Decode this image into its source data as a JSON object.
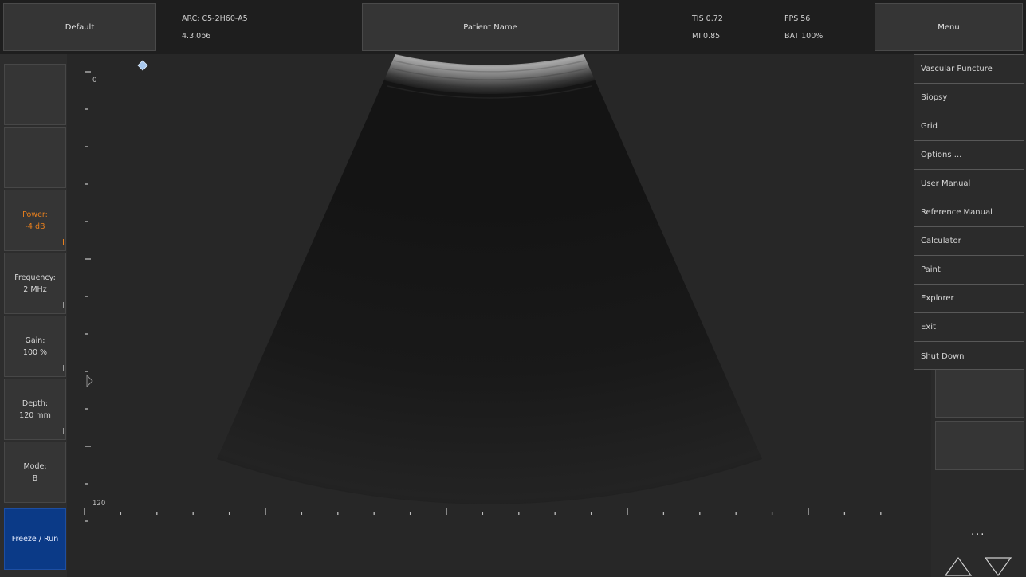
{
  "topbar": {
    "preset_label": "Default",
    "probe": "ARC: C5-2H60-A5",
    "version": "4.3.0b6",
    "patient_label": "Patient Name",
    "tis": "TIS 0.72",
    "mi": "MI 0.85",
    "fps": "FPS 56",
    "battery": "BAT 100%",
    "menu_label": "Menu"
  },
  "controls": {
    "power_label": "Power:",
    "power_value": "-4 dB",
    "frequency_label": "Frequency:",
    "frequency_value": "2 MHz",
    "gain_label": "Gain:",
    "gain_value": "100 %",
    "depth_label": "Depth:",
    "depth_value": "120 mm",
    "mode_label": "Mode:",
    "mode_value": "B",
    "freeze_label": "Freeze / Run"
  },
  "scale": {
    "top_label": "0",
    "bottom_label": "120"
  },
  "menu": {
    "items": [
      "Vascular Puncture",
      "Biopsy",
      "Grid",
      "Options ...",
      "User Manual",
      "Reference Manual",
      "Calculator",
      "Paint",
      "Explorer",
      "Exit",
      "Shut Down"
    ]
  },
  "right": {
    "more_label": "..."
  },
  "colors": {
    "accent_power": "#e8801e",
    "freeze_button": "#0b3a87",
    "focus_marker": "#a8c8ee"
  }
}
